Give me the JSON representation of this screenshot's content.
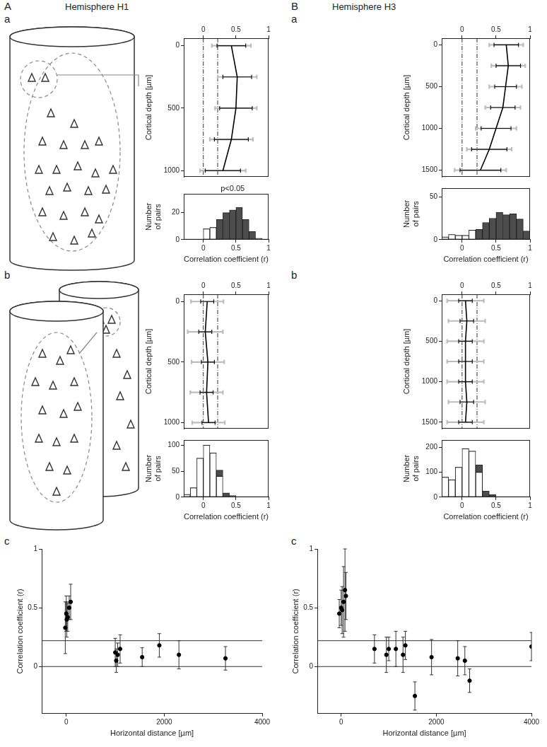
{
  "figure": {
    "columns": [
      {
        "letter": "A",
        "title": "Hemisphere H1"
      },
      {
        "letter": "B",
        "title": "Hemisphere H3"
      }
    ]
  },
  "chart_data": [
    {
      "type": "line",
      "panel": "a",
      "y_label": "Cortical depth [µm]",
      "depth": [
        0,
        250,
        500,
        750,
        1000
      ],
      "values": [
        0.43,
        0.52,
        0.5,
        0.43,
        0.3
      ],
      "error_inner": [
        0.22,
        0.22,
        0.25,
        0.26,
        0.27
      ],
      "error_outer": [
        0.3,
        0.3,
        0.32,
        0.33,
        0.35
      ],
      "xlim": [
        -0.3,
        1
      ],
      "xticks": [
        0,
        0.5,
        1
      ],
      "ylim": [
        -60,
        1050
      ],
      "yticks": [
        0,
        500,
        1000
      ],
      "vlines": [
        0,
        0.22
      ],
      "color": "#000000",
      "grid": false
    },
    {
      "type": "bar",
      "x_label": "Correlation coefficient (r)",
      "y_label": "Number of pairs",
      "bins": [
        0,
        0.1,
        0.2,
        0.3,
        0.4,
        0.5,
        0.6,
        0.7,
        0.8,
        0.9
      ],
      "series": [
        {
          "color": "#ffffff",
          "values": [
            8,
            9,
            0,
            0,
            0,
            0,
            0,
            0,
            0
          ]
        },
        {
          "color": "#4d4d4d",
          "values": [
            0,
            0,
            15,
            20,
            22,
            24,
            15,
            6,
            1
          ]
        }
      ],
      "stacked": true,
      "xlim": [
        -0.3,
        1
      ],
      "xticks": [
        0,
        0.5,
        1
      ],
      "ylim": [
        0,
        34
      ],
      "yticks": [
        0,
        20
      ],
      "annotations": [
        {
          "text": "p<0.05",
          "x": 0.45
        }
      ],
      "grid": false
    },
    {
      "type": "line",
      "panel": "b",
      "y_label": "Cortical depth [µm]",
      "depth": [
        0,
        250,
        500,
        750,
        1000
      ],
      "values": [
        0.06,
        0.03,
        0.07,
        0.05,
        0.08
      ],
      "error_inner": [
        0.1,
        0.1,
        0.1,
        0.1,
        0.1
      ],
      "error_outer": [
        0.25,
        0.27,
        0.25,
        0.25,
        0.25
      ],
      "xlim": [
        -0.3,
        1
      ],
      "xticks": [
        0,
        0.5,
        1
      ],
      "ylim": [
        -60,
        1050
      ],
      "yticks": [
        0,
        500,
        1000
      ],
      "vlines": [
        0,
        0.22
      ],
      "color": "#000000",
      "grid": false
    },
    {
      "type": "bar",
      "x_label": "Correlation coefficient (r)",
      "y_label": "Number of pairs",
      "bins": [
        -0.3,
        -0.2,
        -0.1,
        0,
        0.1,
        0.2,
        0.3,
        0.4,
        0.5
      ],
      "series": [
        {
          "color": "#ffffff",
          "values": [
            5,
            18,
            75,
            100,
            85,
            40,
            0,
            0
          ]
        },
        {
          "color": "#4d4d4d",
          "values": [
            0,
            0,
            0,
            0,
            0,
            12,
            8,
            3
          ]
        }
      ],
      "stacked": true,
      "xlim": [
        -0.3,
        1
      ],
      "xticks": [
        0,
        0.5,
        1
      ],
      "ylim": [
        0,
        110
      ],
      "yticks": [
        0,
        50,
        100
      ],
      "grid": false
    },
    {
      "type": "scatter",
      "panel": "c",
      "x_label": "Horizontal distance [µm]",
      "y_label": "Correlation coefficient (r)",
      "x": [
        -20,
        0,
        10,
        30,
        60,
        90,
        1000,
        1020,
        1050,
        1100,
        1550,
        1900,
        2300,
        3250
      ],
      "values": [
        0.33,
        0.45,
        0.4,
        0.42,
        0.5,
        0.55,
        0.12,
        0.05,
        0.1,
        0.15,
        0.08,
        0.18,
        0.1,
        0.07
      ],
      "errors": [
        0.22,
        0.15,
        0.15,
        0.12,
        0.1,
        0.15,
        0.12,
        0.1,
        0.1,
        0.12,
        0.08,
        0.1,
        0.12,
        0.1
      ],
      "xlim": [
        -500,
        4000
      ],
      "xticks": [
        0,
        2000,
        4000
      ],
      "ylim": [
        -0.4,
        1
      ],
      "yticks": [
        0,
        0.5,
        1
      ],
      "hlines": [
        0,
        0.22
      ],
      "color": "#000000",
      "marker": "circle",
      "grid": false
    },
    {
      "type": "line",
      "panel": "a",
      "y_label": "Cortical depth [µm]",
      "depth": [
        0,
        250,
        500,
        750,
        1000,
        1250,
        1500
      ],
      "values": [
        0.65,
        0.68,
        0.64,
        0.6,
        0.5,
        0.4,
        0.27
      ],
      "error_inner": [
        0.18,
        0.18,
        0.16,
        0.18,
        0.22,
        0.26,
        0.3
      ],
      "error_outer": [
        0.25,
        0.25,
        0.24,
        0.26,
        0.3,
        0.33,
        0.38
      ],
      "xlim": [
        -0.3,
        1
      ],
      "xticks": [
        0,
        0.5,
        1
      ],
      "ylim": [
        -80,
        1580
      ],
      "yticks": [
        0,
        500,
        1000,
        1500
      ],
      "vlines": [
        0,
        0.22
      ],
      "color": "#000000",
      "grid": false
    },
    {
      "type": "bar",
      "x_label": "Correlation coefficient (r)",
      "y_label": "Number of pairs",
      "bins": [
        -0.3,
        -0.2,
        -0.1,
        0,
        0.1,
        0.2,
        0.3,
        0.4,
        0.5,
        0.6,
        0.7,
        0.8,
        0.9,
        1.0
      ],
      "series": [
        {
          "color": "#ffffff",
          "values": [
            3,
            6,
            5,
            5,
            11,
            0,
            0,
            0,
            0,
            0,
            0,
            0,
            0
          ]
        },
        {
          "color": "#4d4d4d",
          "values": [
            0,
            0,
            0,
            0,
            0,
            12,
            20,
            25,
            32,
            29,
            30,
            24,
            10
          ]
        }
      ],
      "stacked": true,
      "xlim": [
        -0.3,
        1
      ],
      "xticks": [
        0,
        0.5,
        1
      ],
      "ylim": [
        0,
        60
      ],
      "yticks": [
        0,
        50
      ],
      "grid": false
    },
    {
      "type": "line",
      "panel": "b",
      "y_label": "Cortical depth [µm]",
      "depth": [
        0,
        250,
        500,
        750,
        1000,
        1250,
        1500
      ],
      "values": [
        0.05,
        0.07,
        0.05,
        0.05,
        0.05,
        0.07,
        0.05
      ],
      "error_inner": [
        0.1,
        0.1,
        0.1,
        0.1,
        0.1,
        0.1,
        0.1
      ],
      "error_outer": [
        0.27,
        0.27,
        0.27,
        0.27,
        0.27,
        0.27,
        0.27
      ],
      "xlim": [
        -0.3,
        1
      ],
      "xticks": [
        0,
        0.5,
        1
      ],
      "ylim": [
        -80,
        1580
      ],
      "yticks": [
        0,
        500,
        1000,
        1500
      ],
      "vlines": [
        0,
        0.22
      ],
      "color": "#000000",
      "grid": false
    },
    {
      "type": "bar",
      "x_label": "Correlation coefficient (r)",
      "y_label": "Number of pairs",
      "bins": [
        -0.3,
        -0.2,
        -0.1,
        0,
        0.1,
        0.2,
        0.3,
        0.4,
        0.5
      ],
      "series": [
        {
          "color": "#ffffff",
          "values": [
            80,
            70,
            120,
            195,
            185,
            100,
            0,
            0
          ]
        },
        {
          "color": "#4d4d4d",
          "values": [
            0,
            0,
            0,
            0,
            0,
            30,
            25,
            10
          ]
        }
      ],
      "stacked": true,
      "xlim": [
        -0.3,
        1
      ],
      "xticks": [
        0,
        0.5,
        1
      ],
      "ylim": [
        0,
        230
      ],
      "yticks": [
        0,
        100,
        200
      ],
      "grid": false
    },
    {
      "type": "scatter",
      "panel": "c",
      "x_label": "Horizontal distance [µm]",
      "y_label": "Correlation coefficient (r)",
      "x": [
        -40,
        0,
        20,
        50,
        80,
        100,
        700,
        950,
        1000,
        1150,
        1300,
        1350,
        1550,
        1900,
        2450,
        2600,
        2700,
        4000
      ],
      "values": [
        0.45,
        0.5,
        0.48,
        0.55,
        0.65,
        0.6,
        0.15,
        0.1,
        0.15,
        0.15,
        0.1,
        0.18,
        -0.25,
        0.08,
        0.07,
        0.05,
        -0.12,
        0.17
      ],
      "errors": [
        0.12,
        0.15,
        0.2,
        0.3,
        0.35,
        0.2,
        0.12,
        0.15,
        0.1,
        0.15,
        0.15,
        0.12,
        0.12,
        0.15,
        0.15,
        0.12,
        0.1,
        0.12
      ],
      "xlim": [
        -500,
        4000
      ],
      "xticks": [
        0,
        2000,
        4000
      ],
      "ylim": [
        -0.4,
        1
      ],
      "yticks": [
        0,
        0.5,
        1
      ],
      "hlines": [
        0,
        0.22
      ],
      "color": "#000000",
      "marker": "circle",
      "grid": false
    }
  ]
}
